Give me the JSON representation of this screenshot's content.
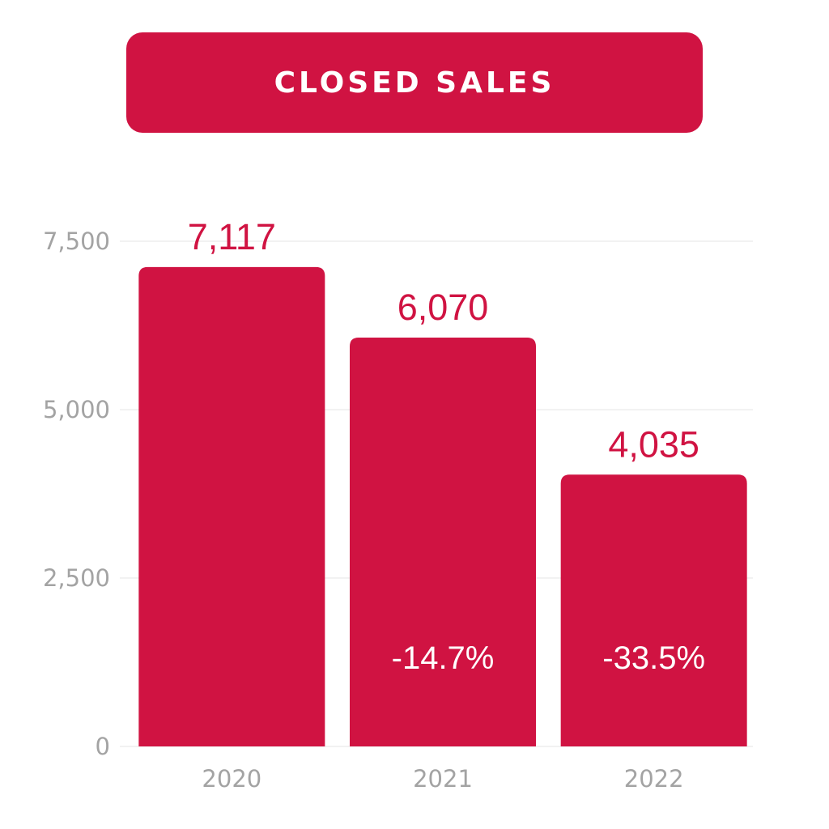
{
  "title": "CLOSED SALES",
  "colors": {
    "accent": "#d01342",
    "grid": "#eeeeee",
    "axis_text": "#a3a3a3",
    "bar_text": "#ffffff"
  },
  "chart_data": {
    "type": "bar",
    "title": "CLOSED SALES",
    "categories": [
      "2020",
      "2021",
      "2022"
    ],
    "values": [
      7117,
      6070,
      4035
    ],
    "value_labels": [
      "7,117",
      "6,070",
      "4,035"
    ],
    "change_labels": [
      "",
      "-14.7%",
      "-33.5%"
    ],
    "yticks": [
      0,
      2500,
      5000,
      7500
    ],
    "ytick_labels": [
      "0",
      "2,500",
      "5,000",
      "7,500"
    ],
    "ylim": [
      0,
      7500
    ],
    "xlabel": "",
    "ylabel": "",
    "grid": true,
    "legend": "none"
  }
}
